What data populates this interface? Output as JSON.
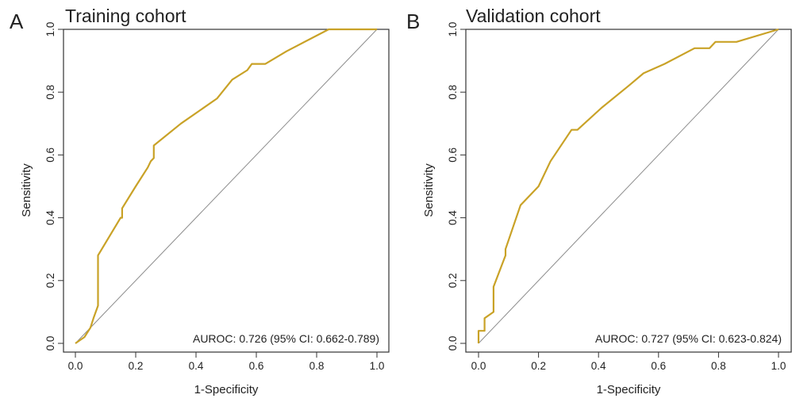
{
  "colors": {
    "roc_line": "#C9A227",
    "diagonal": "#8C8C8C",
    "axis": "#333333"
  },
  "chart_data": [
    {
      "type": "line",
      "panel_label": "A",
      "title": "Training cohort",
      "xlabel": "1-Specificity",
      "ylabel": "Sensitivity",
      "xlim": [
        0,
        1
      ],
      "ylim": [
        0,
        1
      ],
      "xticks": [
        "0.0",
        "0.2",
        "0.4",
        "0.6",
        "0.8",
        "1.0"
      ],
      "yticks": [
        "0.0",
        "0.2",
        "0.4",
        "0.6",
        "0.8",
        "1.0"
      ],
      "annotation": "AUROC: 0.726 (95% CI: 0.662-0.789)",
      "grid": false,
      "reference_line": "diagonal",
      "series": [
        {
          "x": [
            0.0,
            0.03,
            0.05,
            0.06,
            0.075,
            0.075,
            0.15,
            0.155,
            0.155,
            0.2,
            0.24,
            0.25,
            0.26,
            0.26,
            0.35,
            0.47,
            0.52,
            0.57,
            0.585,
            0.63,
            0.7,
            0.84,
            1.0
          ],
          "y": [
            0.0,
            0.02,
            0.05,
            0.08,
            0.12,
            0.28,
            0.4,
            0.4,
            0.43,
            0.5,
            0.56,
            0.58,
            0.59,
            0.63,
            0.7,
            0.78,
            0.84,
            0.87,
            0.89,
            0.89,
            0.93,
            1.0,
            1.0
          ]
        }
      ]
    },
    {
      "type": "line",
      "panel_label": "B",
      "title": "Validation cohort",
      "xlabel": "1-Specificity",
      "ylabel": "Sensitivity",
      "xlim": [
        0,
        1
      ],
      "ylim": [
        0,
        1
      ],
      "xticks": [
        "0.0",
        "0.2",
        "0.4",
        "0.6",
        "0.8",
        "1.0"
      ],
      "yticks": [
        "0.0",
        "0.2",
        "0.4",
        "0.6",
        "0.8",
        "1.0"
      ],
      "annotation": "AUROC: 0.727 (95% CI: 0.623-0.824)",
      "grid": false,
      "reference_line": "diagonal",
      "series": [
        {
          "x": [
            0.0,
            0.0,
            0.02,
            0.02,
            0.05,
            0.05,
            0.09,
            0.09,
            0.14,
            0.2,
            0.24,
            0.31,
            0.33,
            0.41,
            0.5,
            0.55,
            0.62,
            0.72,
            0.77,
            0.79,
            0.86,
            1.0
          ],
          "y": [
            0.0,
            0.04,
            0.04,
            0.08,
            0.1,
            0.18,
            0.28,
            0.3,
            0.44,
            0.5,
            0.58,
            0.68,
            0.68,
            0.75,
            0.82,
            0.86,
            0.89,
            0.94,
            0.94,
            0.96,
            0.96,
            1.0
          ]
        }
      ]
    }
  ]
}
